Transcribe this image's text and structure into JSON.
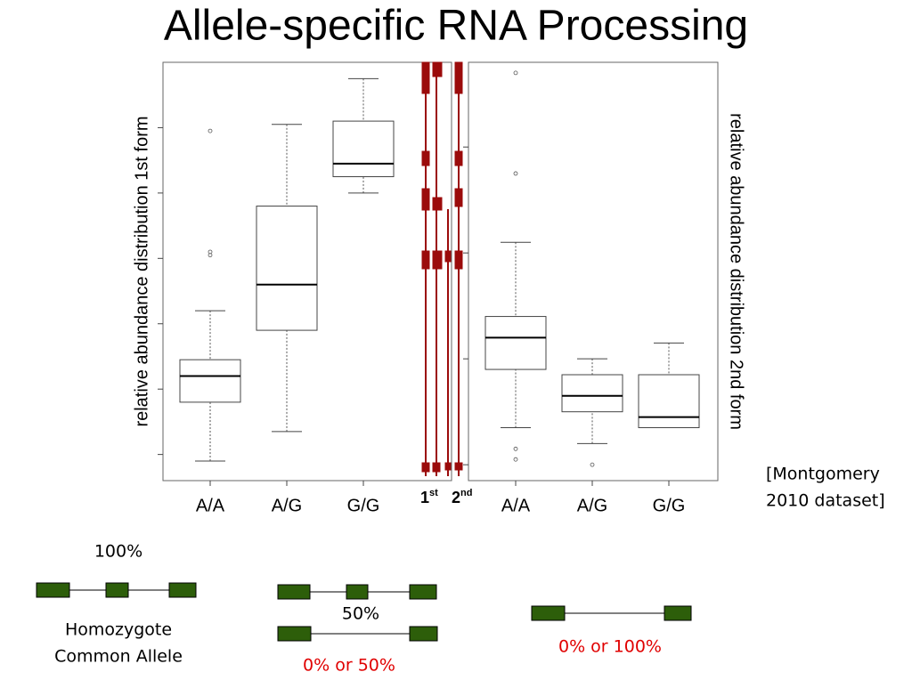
{
  "slide": {
    "title": "Allele-specific RNA Processing",
    "citation": [
      "[Montgomery",
      "2010 dataset]"
    ],
    "isoforms": [
      {
        "base": "1",
        "sup": "st"
      },
      {
        "base": "2",
        "sup": "nd"
      }
    ],
    "diagrams": [
      {
        "top": "100%",
        "caption": [
          "Homozygote",
          "Common Allele"
        ]
      },
      {
        "middle": "50%",
        "caption": [
          "0% or 50%"
        ]
      },
      {
        "caption": [
          "0% or 100%"
        ]
      }
    ]
  },
  "chart_data": [
    {
      "type": "box",
      "ylabel": "relative abundance distribution 1st form",
      "categories": [
        "A/A",
        "A/G",
        "G/G"
      ],
      "low": [
        -0.02,
        0.07,
        0.8
      ],
      "q1": [
        0.16,
        0.38,
        0.85
      ],
      "median": [
        0.24,
        0.52,
        0.89
      ],
      "q3": [
        0.29,
        0.76,
        1.02
      ],
      "high": [
        0.44,
        1.01,
        1.15
      ],
      "outliers": [
        [
          0.62,
          0.61,
          0.99
        ],
        [],
        []
      ],
      "ylim": [
        -0.08,
        1.2
      ],
      "yticks": [
        0,
        0.2,
        0.4,
        0.6,
        0.8,
        1
      ]
    },
    {
      "type": "box",
      "ylabel": "relative abundance distribution 2nd form",
      "categories": [
        "A/A",
        "A/G",
        "G/G"
      ],
      "low": [
        0.07,
        0.04,
        0.07
      ],
      "q1": [
        0.18,
        0.1,
        0.07
      ],
      "median": [
        0.24,
        0.13,
        0.09
      ],
      "q3": [
        0.28,
        0.17,
        0.17
      ],
      "high": [
        0.42,
        0.2,
        0.23
      ],
      "outliers": [
        [
          0.03,
          0.01,
          0.55,
          0.74
        ],
        [
          0.0
        ],
        []
      ],
      "ylim": [
        -0.03,
        0.76
      ],
      "yticks": [
        0,
        0.2,
        0.4,
        0.6
      ]
    }
  ]
}
